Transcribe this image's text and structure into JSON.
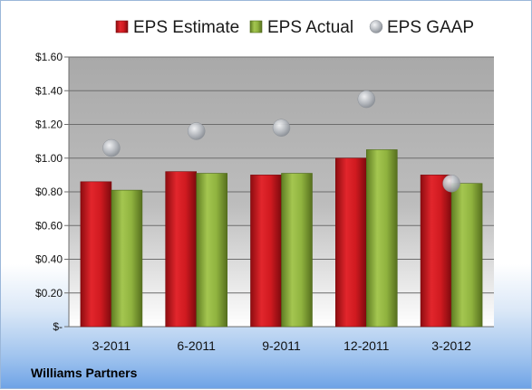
{
  "footer_label": "Williams Partners",
  "chart_data": {
    "type": "bar",
    "categories": [
      "3-2011",
      "6-2011",
      "9-2011",
      "12-2011",
      "3-2012"
    ],
    "series": [
      {
        "name": "EPS Estimate",
        "type": "bar",
        "color": "#c8161d",
        "values": [
          0.86,
          0.92,
          0.9,
          1.0,
          0.9
        ]
      },
      {
        "name": "EPS Actual",
        "type": "bar",
        "color": "#8db03c",
        "values": [
          0.81,
          0.91,
          0.91,
          1.05,
          0.85
        ]
      },
      {
        "name": "EPS GAAP",
        "type": "scatter",
        "color": "#b8bcc2",
        "values": [
          1.06,
          1.16,
          1.18,
          1.35,
          0.85
        ]
      }
    ],
    "ylim": [
      0,
      1.6
    ],
    "y_ticks": [
      0,
      0.2,
      0.4,
      0.6,
      0.8,
      1.0,
      1.2,
      1.4,
      1.6
    ],
    "y_tick_labels": [
      "$-",
      "$0.20",
      "$0.40",
      "$0.60",
      "$0.80",
      "$1.00",
      "$1.20",
      "$1.40",
      "$1.60"
    ],
    "grid": true,
    "legend_position": "top"
  }
}
